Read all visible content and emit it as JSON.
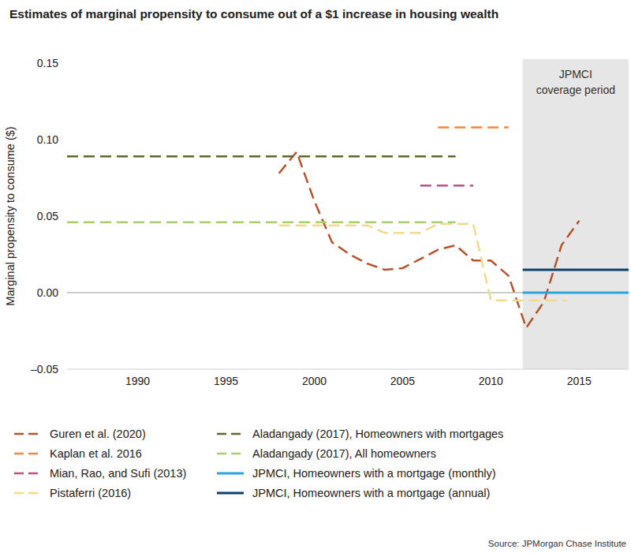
{
  "chart_data": {
    "type": "line",
    "title": "Estimates of marginal propensity to consume out of a $1 increase in housing wealth",
    "y_label": "Marginal propensity to consume ($)",
    "source": "Source: JPMorgan Chase Institute",
    "xlim": [
      1986,
      2017.8
    ],
    "xticks": [
      1990,
      1995,
      2000,
      2005,
      2010,
      2015
    ],
    "ylim": [
      -0.05,
      0.15
    ],
    "yticks": [
      {
        "value": -0.05,
        "label": "–0.05"
      },
      {
        "value": 0,
        "label": "0.00"
      },
      {
        "value": 0.05,
        "label": "0.05"
      },
      {
        "value": 0.1,
        "label": "0.10"
      },
      0.15
    ],
    "grid": false,
    "legend": "bottom",
    "reference_line": 0,
    "annotations": [
      {
        "text": [
          "JPMCI",
          "coverage period"
        ],
        "x": [
          2011.8,
          2017.8
        ]
      }
    ],
    "series": [
      {
        "name": "Guren et al. (2020)",
        "color": "#b5532a",
        "line_style": "dashed",
        "x": [
          1998,
          1999,
          2000,
          2001,
          2002,
          2003,
          2004,
          2005,
          2006,
          2007,
          2008,
          2009,
          2010,
          2011,
          2012,
          2013,
          2014,
          2015
        ],
        "values": [
          0.078,
          0.092,
          0.06,
          0.033,
          0.025,
          0.019,
          0.015,
          0.016,
          0.022,
          0.028,
          0.031,
          0.021,
          0.021,
          0.011,
          -0.023,
          -0.006,
          0.031,
          0.047
        ]
      },
      {
        "name": "Kaplan et al. 2016",
        "color": "#f0883e",
        "line_style": "dashed",
        "x": [
          2007,
          2011
        ],
        "values": [
          0.108,
          0.108
        ]
      },
      {
        "name": "Mian, Rao, and Sufi (2013)",
        "color": "#c0508a",
        "line_style": "dashed",
        "x": [
          2006,
          2009
        ],
        "values": [
          0.07,
          0.07
        ]
      },
      {
        "name": "Pistaferri (2016)",
        "color": "#f5d98a",
        "line_style": "dashed",
        "x": [
          1998,
          2003,
          2004,
          2006,
          2007,
          2009,
          2010,
          2014.3
        ],
        "values": [
          0.044,
          0.044,
          0.039,
          0.039,
          0.045,
          0.045,
          -0.005,
          -0.005
        ]
      },
      {
        "name": "Aladangady (2017), Homeowners with mortgages",
        "color": "#5a6a2a",
        "line_style": "dashed",
        "x": [
          1986,
          2008
        ],
        "values": [
          0.089,
          0.089
        ]
      },
      {
        "name": "Aladangady (2017), All homeowners",
        "color": "#a8cf6a",
        "line_style": "dashed",
        "x": [
          1986,
          2008
        ],
        "values": [
          0.046,
          0.046
        ]
      },
      {
        "name": "JPMCI, Homeowners with a mortgage (monthly)",
        "color": "#2aa5dc",
        "line_style": "solid",
        "x": [
          2011.8,
          2017.8
        ],
        "values": [
          0.0,
          0.0
        ]
      },
      {
        "name": "JPMCI, Homeowners with a mortgage (annual)",
        "color": "#0e3e6b",
        "line_style": "solid",
        "x": [
          2011.8,
          2017.8
        ],
        "values": [
          0.015,
          0.015
        ]
      }
    ]
  }
}
